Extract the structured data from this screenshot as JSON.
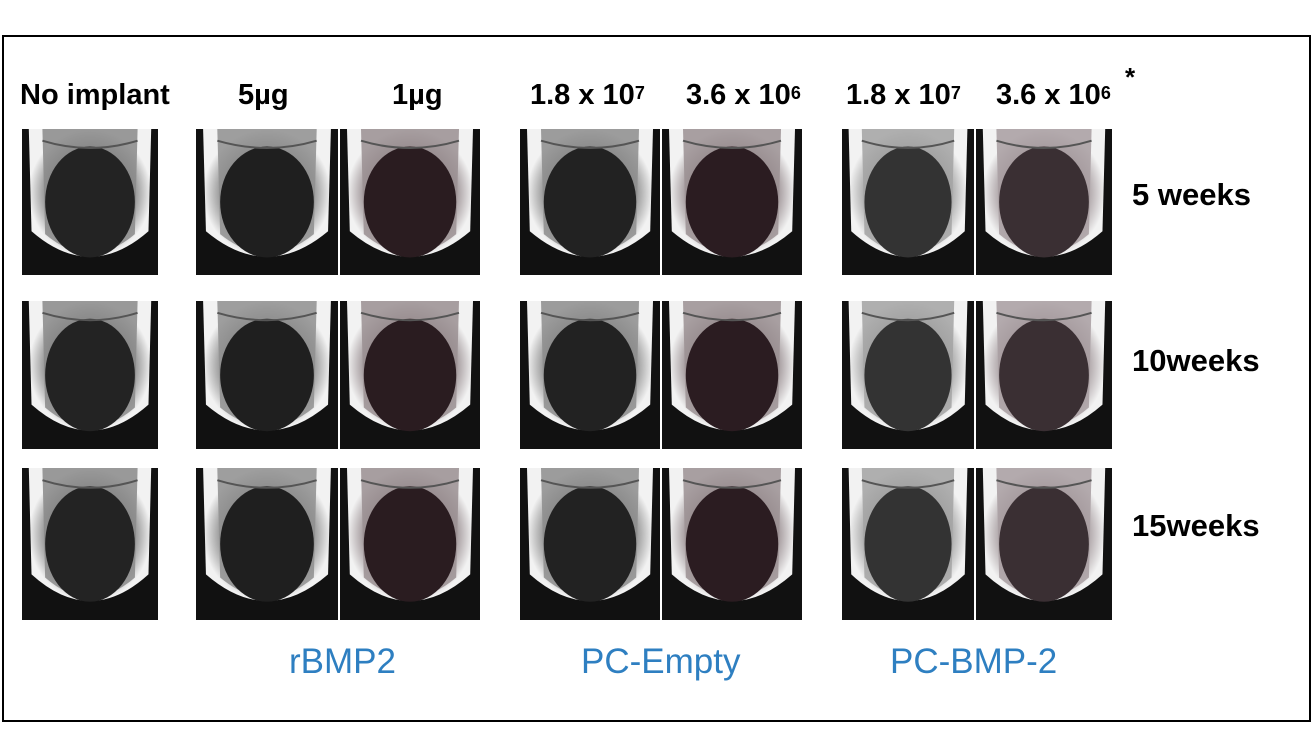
{
  "columns": [
    {
      "label": "No implant",
      "sup": ""
    },
    {
      "label": "5µg",
      "sup": ""
    },
    {
      "label": "1µg",
      "sup": ""
    },
    {
      "label": "1.8 x 10",
      "sup": "7"
    },
    {
      "label": "3.6 x 10",
      "sup": "6"
    },
    {
      "label": "1.8 x 10",
      "sup": "7"
    },
    {
      "label": "3.6 x 10",
      "sup": "6"
    }
  ],
  "asterisk": "*",
  "rows": [
    "5 weeks",
    "10weeks",
    "15weeks"
  ],
  "groups": [
    "rBMP2",
    "PC-Empty",
    "PC-BMP-2"
  ],
  "colors": {
    "group_label": "#2e7fc1",
    "frame": "#000000"
  }
}
